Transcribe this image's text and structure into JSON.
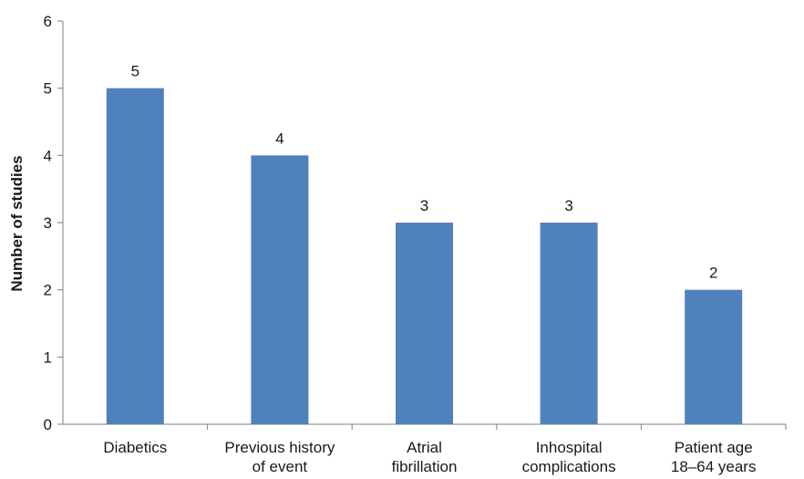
{
  "chart_data": {
    "type": "bar",
    "categories": [
      [
        "Diabetics"
      ],
      [
        "Previous history",
        "of event"
      ],
      [
        "Atrial",
        "fibrillation"
      ],
      [
        "Inhospital",
        "complications"
      ],
      [
        "Patient age",
        "18–64 years"
      ]
    ],
    "values": [
      5,
      4,
      3,
      3,
      2
    ],
    "data_labels": [
      "5",
      "4",
      "3",
      "3",
      "2"
    ],
    "ylabel": "Number of studies",
    "xlabel": "",
    "title": "",
    "ylim": [
      0,
      6
    ],
    "yticks": [
      "0",
      "1",
      "2",
      "3",
      "4",
      "5",
      "6"
    ],
    "grid": false,
    "legend": "none",
    "bar_color": "#4f81bd"
  }
}
